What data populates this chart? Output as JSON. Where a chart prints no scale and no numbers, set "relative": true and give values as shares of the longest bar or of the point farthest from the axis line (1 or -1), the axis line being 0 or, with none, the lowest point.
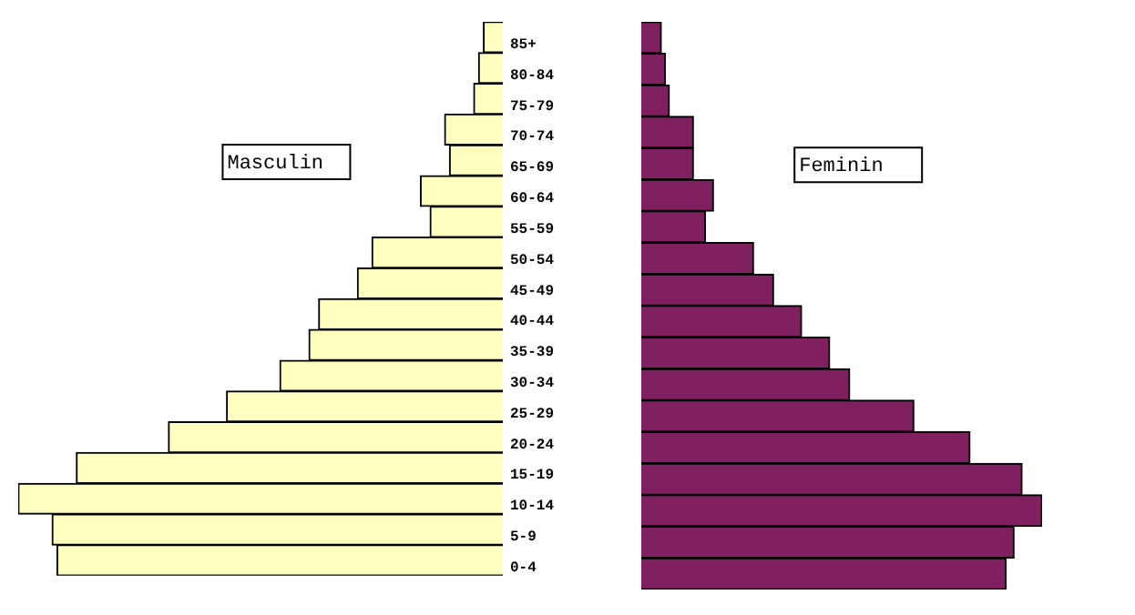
{
  "chart_data": [
    {
      "type": "bar",
      "orientation": "horizontal",
      "relative": true,
      "tick_labels": "y",
      "categories": [
        "85+",
        "80-84",
        "75-79",
        "70-74",
        "65-69",
        "60-64",
        "55-59",
        "50-54",
        "45-49",
        "40-44",
        "35-39",
        "30-34",
        "25-29",
        "20-24",
        "15-19",
        "10-14",
        "5-9",
        "0-4"
      ],
      "series": [
        {
          "name": "Masculin",
          "color": "#ffffc0",
          "values": [
            -0.04,
            -0.05,
            -0.06,
            -0.12,
            -0.11,
            -0.17,
            -0.15,
            -0.27,
            -0.3,
            -0.38,
            -0.4,
            -0.46,
            -0.57,
            -0.69,
            -0.88,
            -1,
            -0.93,
            -0.92
          ]
        }
      ]
    },
    {
      "type": "bar",
      "orientation": "horizontal",
      "relative": true,
      "tick_labels": false,
      "categories": [
        null,
        null,
        null,
        null,
        null,
        null,
        null,
        null,
        null,
        null,
        null,
        null,
        null,
        null,
        null,
        null,
        null,
        null
      ],
      "series": [
        {
          "name": "Feminin",
          "color": "#802060",
          "values": [
            0.05,
            0.06,
            0.07,
            0.13,
            0.13,
            0.18,
            0.16,
            0.28,
            0.33,
            0.4,
            0.47,
            0.52,
            0.68,
            0.82,
            0.95,
            1,
            0.93,
            0.91
          ]
        }
      ]
    }
  ]
}
